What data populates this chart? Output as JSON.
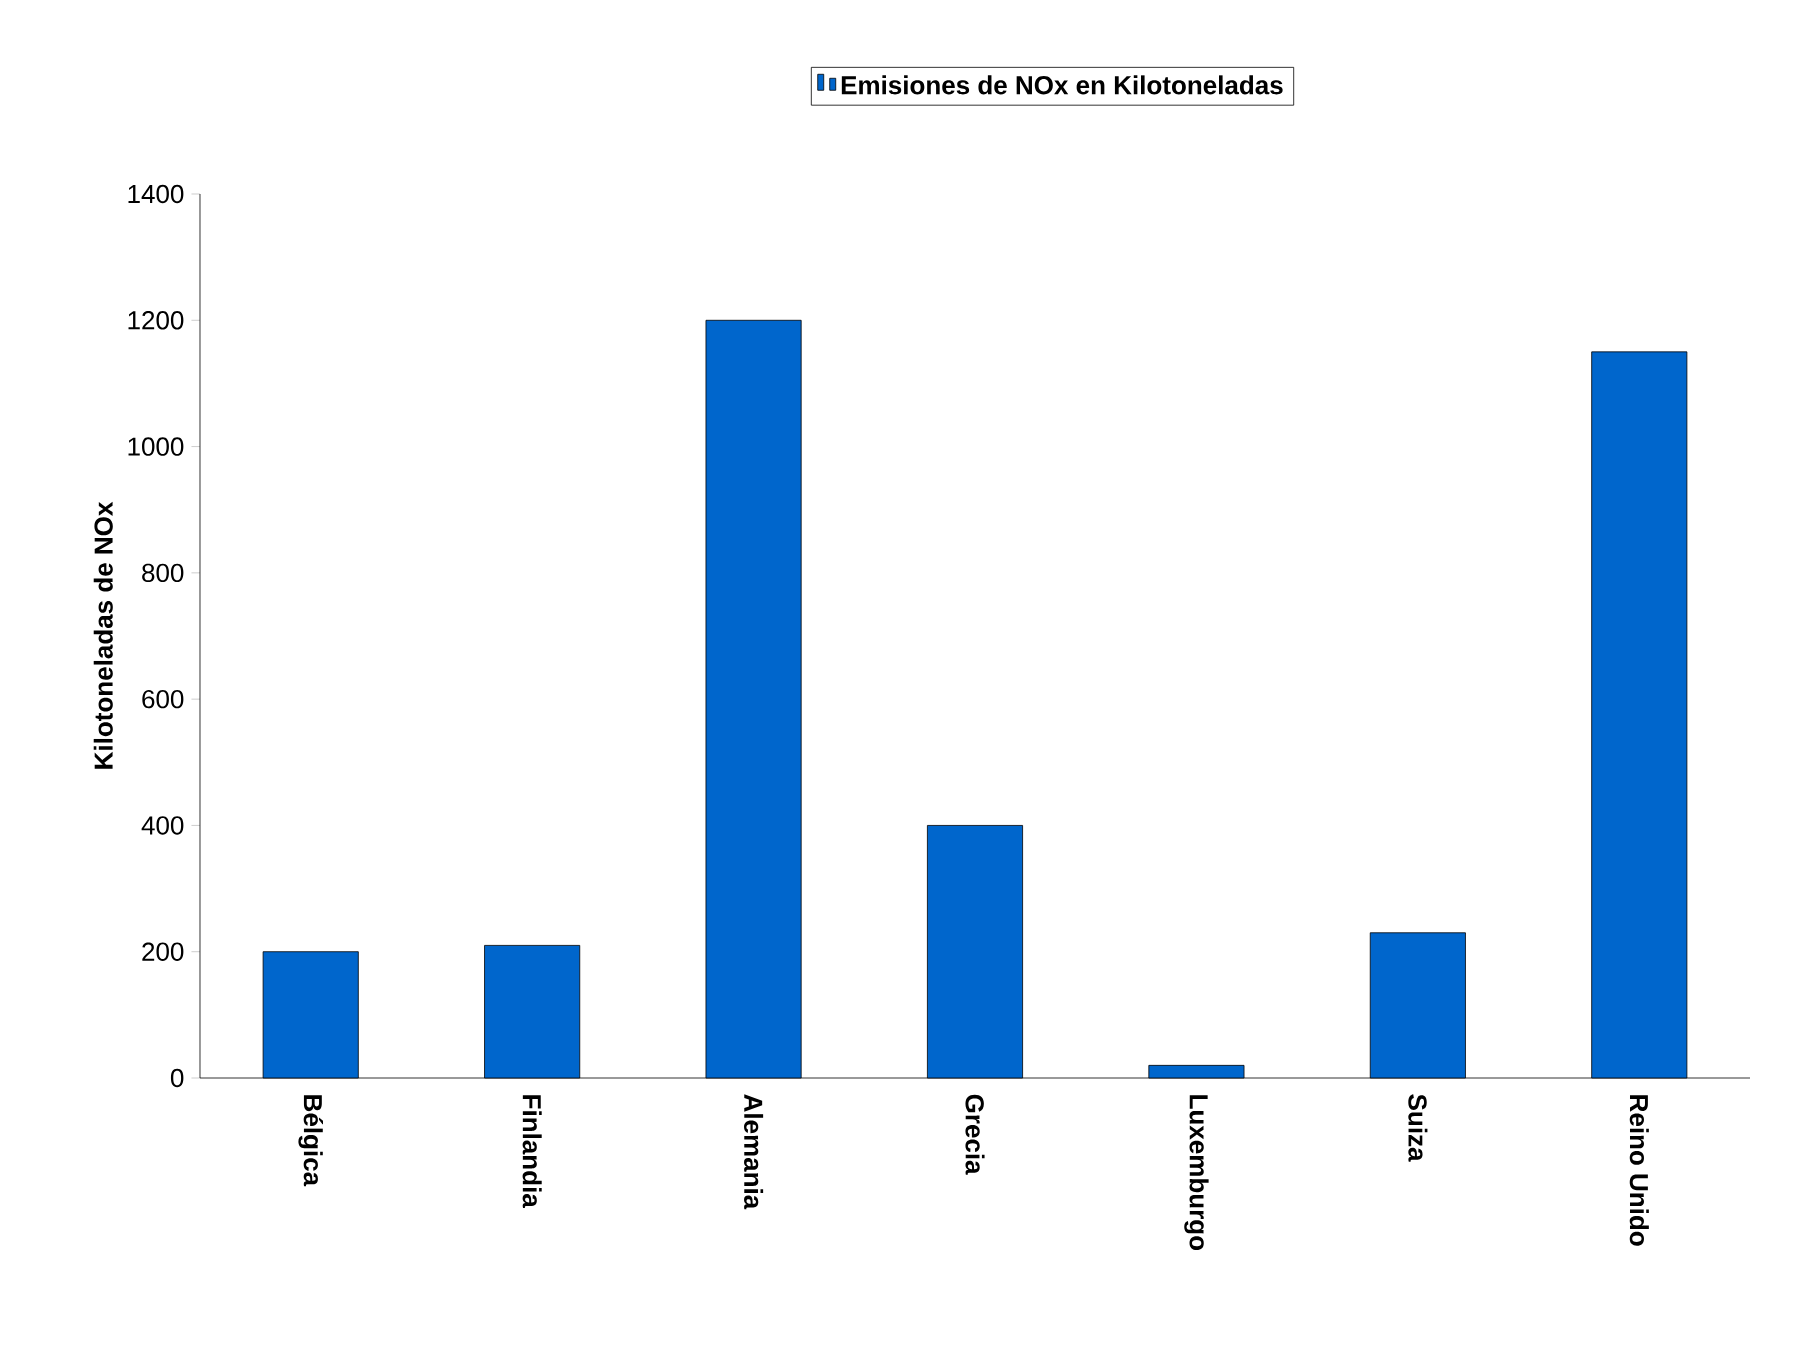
{
  "chart_data": {
    "type": "bar",
    "ylabel": "Kilotoneladas de NOx",
    "categories": [
      "Bélgica",
      "Finlandia",
      "Alemania",
      "Grecia",
      "Luxemburgo",
      "Suiza",
      "Reino Unido"
    ],
    "series": [
      {
        "name": "Emisiones de NOx en Kilotoneladas",
        "color": "#0066cc",
        "values": [
          200,
          210,
          1200,
          400,
          20,
          230,
          1150
        ]
      }
    ],
    "ylim": [
      0,
      1400
    ],
    "yticks": [
      0,
      200,
      400,
      600,
      800,
      1000,
      1200,
      1400
    ],
    "legend": "top",
    "grid": false
  }
}
